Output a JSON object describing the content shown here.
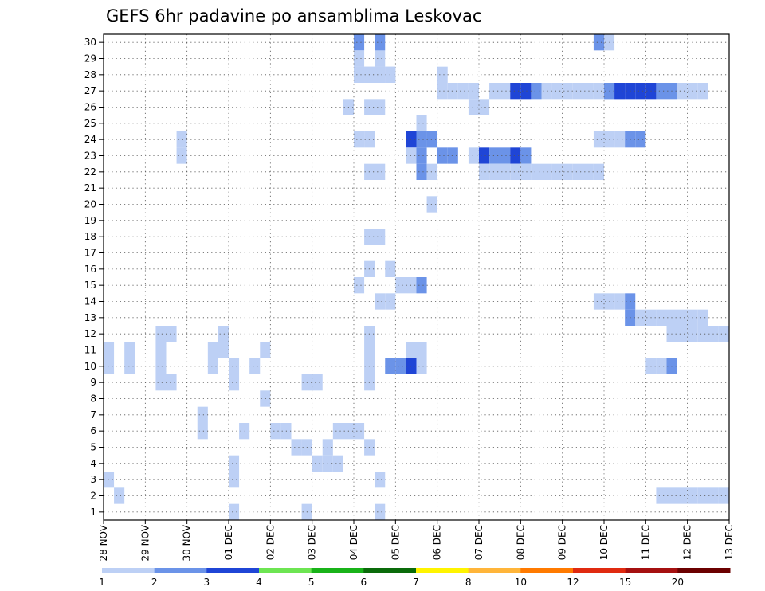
{
  "chart_data": {
    "type": "heatmap",
    "title": "GEFS 6hr padavine po ansamblima Leskovac",
    "x_ticks": [
      "28 NOV",
      "29 NOV",
      "30 NOV",
      "01 DEC",
      "02 DEC",
      "03 DEC",
      "04 DEC",
      "05 DEC",
      "06 DEC",
      "07 DEC",
      "08 DEC",
      "09 DEC",
      "10 DEC",
      "11 DEC",
      "12 DEC",
      "13 DEC"
    ],
    "y_range": [
      1,
      30
    ],
    "y_ticks": [
      1,
      2,
      3,
      4,
      5,
      6,
      7,
      8,
      9,
      10,
      11,
      12,
      13,
      14,
      15,
      16,
      17,
      18,
      19,
      20,
      21,
      22,
      23,
      24,
      25,
      26,
      27,
      28,
      29,
      30
    ],
    "time_step_hours": 6,
    "grid": true,
    "legend": {
      "position": "bottom",
      "labels": [
        "1",
        "2",
        "3",
        "4",
        "5",
        "6",
        "7",
        "8",
        "10",
        "12",
        "15",
        "20"
      ],
      "colors": [
        "#bdd0f5",
        "#6b93e8",
        "#1f45d6",
        "#6de552",
        "#19b319",
        "#0a6b0a",
        "#fff400",
        "#ffb53a",
        "#ff7a00",
        "#e02a10",
        "#a51010",
        "#6b0000"
      ]
    },
    "cells": [
      [
        0,
        2,
        11,
        1
      ],
      [
        0,
        2,
        10,
        1
      ],
      [
        0,
        5,
        12,
        1
      ],
      [
        0,
        5,
        11,
        1
      ],
      [
        0,
        5,
        10,
        1
      ],
      [
        0,
        5,
        9,
        1
      ],
      [
        0,
        6,
        12,
        1
      ],
      [
        0,
        6,
        9,
        1
      ],
      [
        0,
        10,
        11,
        1
      ],
      [
        0,
        10,
        10,
        1
      ],
      [
        0,
        12,
        9,
        1
      ],
      [
        0,
        12,
        1,
        1
      ],
      [
        1,
        0,
        11,
        1
      ],
      [
        1,
        0,
        10,
        1
      ],
      [
        1,
        0,
        3,
        1
      ],
      [
        1,
        1,
        2,
        1
      ],
      [
        1,
        7,
        24,
        1
      ],
      [
        1,
        7,
        23,
        1
      ],
      [
        1,
        9,
        7,
        1
      ],
      [
        1,
        9,
        6,
        1
      ],
      [
        1,
        11,
        12,
        1
      ],
      [
        1,
        11,
        11,
        1
      ],
      [
        1,
        12,
        4,
        1
      ],
      [
        1,
        12,
        10,
        1
      ],
      [
        1,
        12,
        3,
        1
      ],
      [
        1,
        13,
        6,
        1
      ],
      [
        1,
        14,
        10,
        1
      ],
      [
        1,
        15,
        11,
        1
      ],
      [
        1,
        15,
        8,
        1
      ],
      [
        1,
        16,
        6,
        1
      ],
      [
        1,
        17,
        6,
        1
      ],
      [
        1,
        18,
        5,
        1
      ],
      [
        1,
        19,
        5,
        1
      ],
      [
        1,
        19,
        1,
        1
      ],
      [
        1,
        19,
        9,
        1
      ],
      [
        1,
        20,
        9,
        1
      ],
      [
        1,
        20,
        4,
        1
      ],
      [
        1,
        21,
        5,
        1
      ],
      [
        1,
        21,
        4,
        1
      ],
      [
        1,
        22,
        4,
        1
      ],
      [
        1,
        22,
        6,
        1
      ],
      [
        1,
        23,
        6,
        1
      ],
      [
        1,
        24,
        6,
        1
      ],
      [
        1,
        25,
        12,
        1
      ],
      [
        1,
        25,
        11,
        1
      ],
      [
        1,
        25,
        10,
        1
      ],
      [
        1,
        24,
        15,
        1
      ],
      [
        1,
        25,
        16,
        1
      ],
      [
        1,
        25,
        9,
        1
      ],
      [
        1,
        25,
        5,
        1
      ],
      [
        1,
        26,
        3,
        1
      ],
      [
        1,
        26,
        1,
        1
      ],
      [
        1,
        25,
        24,
        1
      ],
      [
        1,
        25,
        26,
        1
      ],
      [
        1,
        26,
        26,
        1
      ],
      [
        1,
        25,
        22,
        1
      ],
      [
        1,
        25,
        18,
        1
      ],
      [
        1,
        26,
        18,
        1
      ],
      [
        1,
        26,
        14,
        1
      ],
      [
        1,
        27,
        14,
        1
      ],
      [
        1,
        26,
        22,
        1
      ],
      [
        1,
        24,
        28,
        1
      ],
      [
        1,
        25,
        28,
        1
      ],
      [
        1,
        26,
        28,
        1
      ],
      [
        1,
        27,
        28,
        1
      ],
      [
        1,
        26,
        29,
        1
      ],
      [
        1,
        26,
        30,
        2
      ],
      [
        1,
        24,
        30,
        2
      ],
      [
        1,
        23,
        26,
        1
      ],
      [
        1,
        24,
        24,
        1
      ],
      [
        1,
        27,
        16,
        1
      ],
      [
        1,
        28,
        15,
        1
      ],
      [
        1,
        27,
        10,
        2
      ],
      [
        1,
        28,
        10,
        2
      ],
      [
        1,
        29,
        11,
        1
      ],
      [
        1,
        30,
        11,
        1
      ],
      [
        1,
        29,
        10,
        3
      ],
      [
        1,
        30,
        10,
        1
      ],
      [
        1,
        29,
        15,
        1
      ],
      [
        1,
        30,
        25,
        1
      ],
      [
        1,
        30,
        22,
        2
      ],
      [
        1,
        31,
        24,
        1
      ],
      [
        1,
        31,
        22,
        1
      ],
      [
        1,
        31,
        20,
        1
      ],
      [
        1,
        30,
        15,
        2
      ],
      [
        2,
        24,
        28,
        1
      ],
      [
        2,
        24,
        29,
        1
      ],
      [
        2,
        25,
        28,
        1
      ],
      [
        2,
        26,
        28,
        1
      ],
      [
        2,
        27,
        28,
        1
      ],
      [
        2,
        32,
        28,
        1
      ],
      [
        2,
        32,
        27,
        1
      ],
      [
        2,
        33,
        27,
        1
      ],
      [
        2,
        34,
        27,
        1
      ],
      [
        2,
        35,
        27,
        1
      ],
      [
        2,
        35,
        26,
        1
      ],
      [
        2,
        36,
        26,
        1
      ],
      [
        2,
        37,
        27,
        1
      ],
      [
        2,
        38,
        27,
        1
      ],
      [
        2,
        39,
        27,
        3
      ],
      [
        2,
        40,
        27,
        3
      ],
      [
        2,
        41,
        27,
        2
      ],
      [
        2,
        42,
        27,
        1
      ],
      [
        2,
        43,
        27,
        1
      ],
      [
        2,
        44,
        27,
        1
      ],
      [
        2,
        45,
        27,
        1
      ],
      [
        2,
        46,
        27,
        1
      ],
      [
        2,
        47,
        27,
        1
      ],
      [
        2,
        48,
        27,
        1
      ],
      [
        2,
        49,
        27,
        1
      ],
      [
        2,
        29,
        24,
        3
      ],
      [
        2,
        30,
        24,
        2
      ],
      [
        2,
        31,
        24,
        2
      ],
      [
        2,
        29,
        23,
        1
      ],
      [
        2,
        30,
        23,
        2
      ],
      [
        2,
        32,
        23,
        2
      ],
      [
        2,
        33,
        23,
        2
      ],
      [
        2,
        36,
        23,
        3
      ],
      [
        2,
        37,
        23,
        2
      ],
      [
        2,
        38,
        23,
        2
      ],
      [
        2,
        39,
        23,
        3
      ],
      [
        2,
        35,
        23,
        1
      ],
      [
        2,
        36,
        22,
        1
      ],
      [
        2,
        37,
        22,
        1
      ],
      [
        2,
        38,
        22,
        1
      ],
      [
        2,
        40,
        23,
        2
      ],
      [
        2,
        39,
        22,
        1
      ],
      [
        2,
        40,
        22,
        1
      ],
      [
        2,
        41,
        22,
        1
      ],
      [
        2,
        42,
        22,
        1
      ],
      [
        2,
        43,
        22,
        1
      ],
      [
        2,
        44,
        22,
        1
      ],
      [
        2,
        45,
        22,
        1
      ],
      [
        2,
        46,
        22,
        1
      ],
      [
        2,
        47,
        22,
        1
      ],
      [
        2,
        47,
        30,
        2
      ],
      [
        2,
        48,
        30,
        1
      ],
      [
        2,
        48,
        27,
        2
      ],
      [
        2,
        49,
        27,
        3
      ],
      [
        2,
        50,
        27,
        3
      ],
      [
        2,
        51,
        27,
        3
      ],
      [
        2,
        52,
        27,
        3
      ],
      [
        2,
        53,
        27,
        2
      ],
      [
        2,
        54,
        27,
        2
      ],
      [
        2,
        55,
        27,
        1
      ],
      [
        2,
        56,
        27,
        1
      ],
      [
        2,
        57,
        27,
        1
      ],
      [
        2,
        47,
        24,
        1
      ],
      [
        2,
        48,
        24,
        1
      ],
      [
        2,
        49,
        24,
        1
      ],
      [
        2,
        50,
        24,
        2
      ],
      [
        2,
        51,
        24,
        2
      ],
      [
        2,
        47,
        14,
        1
      ],
      [
        2,
        48,
        14,
        1
      ],
      [
        2,
        49,
        14,
        1
      ],
      [
        2,
        50,
        14,
        2
      ],
      [
        2,
        50,
        13,
        2
      ],
      [
        2,
        51,
        13,
        1
      ],
      [
        2,
        52,
        13,
        1
      ],
      [
        2,
        53,
        13,
        1
      ],
      [
        2,
        54,
        13,
        1
      ],
      [
        2,
        55,
        13,
        1
      ],
      [
        2,
        56,
        13,
        1
      ],
      [
        2,
        57,
        13,
        1
      ],
      [
        2,
        52,
        10,
        1
      ],
      [
        2,
        53,
        10,
        1
      ],
      [
        2,
        54,
        10,
        2
      ],
      [
        2,
        54,
        12,
        1
      ],
      [
        2,
        55,
        12,
        1
      ],
      [
        2,
        56,
        12,
        1
      ],
      [
        2,
        57,
        12,
        1
      ],
      [
        2,
        58,
        12,
        1
      ],
      [
        2,
        59,
        12,
        1
      ],
      [
        2,
        53,
        2,
        1
      ],
      [
        2,
        54,
        2,
        1
      ],
      [
        2,
        55,
        2,
        1
      ],
      [
        2,
        56,
        2,
        1
      ],
      [
        2,
        57,
        2,
        1
      ],
      [
        2,
        58,
        2,
        1
      ],
      [
        2,
        59,
        2,
        1
      ]
    ]
  }
}
